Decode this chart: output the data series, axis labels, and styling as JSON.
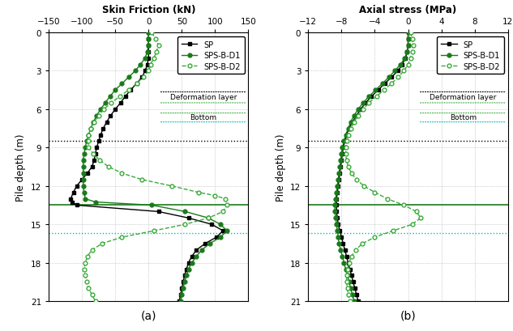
{
  "title_a": "Skin Friction (kN)",
  "title_b": "Axial stress (MPa)",
  "ylabel": "Pile depth (m)",
  "label_a": "(a)",
  "label_b": "(b)",
  "xlim_a": [
    -150,
    150
  ],
  "xlim_b": [
    -12,
    12
  ],
  "xticks_a": [
    -150,
    -100,
    -50,
    0,
    50,
    100,
    150
  ],
  "xticks_b": [
    -12,
    -8,
    -4,
    0,
    4,
    8,
    12
  ],
  "ylim": [
    21,
    0
  ],
  "yticks": [
    0,
    3,
    6,
    9,
    12,
    15,
    18,
    21
  ],
  "hline_black_dotted": 8.5,
  "hline_green_solid": 13.5,
  "hline_cyan_dotted": 15.7,
  "deformation_layer_y": 5.0,
  "bottom_y": 6.6,
  "deformation_line1_y": 4.5,
  "deformation_line2_y": 5.4,
  "bottom_line_y": 7.0,
  "SP_color": "#000000",
  "D1_color": "#1a7a1a",
  "D2_color": "#3aaa3a",
  "cyan_color": "#00bbbb",
  "SP_a_depth": [
    0.0,
    0.5,
    1.0,
    1.5,
    2.0,
    2.5,
    3.0,
    3.5,
    4.0,
    4.5,
    5.0,
    5.5,
    6.0,
    6.5,
    7.0,
    7.5,
    8.0,
    8.5,
    9.0,
    9.5,
    10.0,
    10.5,
    11.0,
    11.5,
    12.0,
    12.5,
    13.0,
    13.25,
    13.5,
    14.0,
    14.5,
    15.0,
    15.5,
    16.0,
    16.5,
    17.0,
    17.5,
    18.0,
    18.5,
    19.0,
    19.5,
    20.0,
    20.5,
    21.0
  ],
  "SP_a_vals": [
    0,
    0,
    0,
    0,
    0,
    -2,
    -5,
    -10,
    -18,
    -27,
    -35,
    -42,
    -50,
    -57,
    -63,
    -68,
    -72,
    -75,
    -78,
    -80,
    -82,
    -85,
    -92,
    -100,
    -108,
    -113,
    -117,
    -115,
    -108,
    15,
    60,
    95,
    112,
    102,
    85,
    72,
    65,
    60,
    57,
    54,
    52,
    50,
    48,
    46
  ],
  "D1_a_depth": [
    0.0,
    0.5,
    1.0,
    1.5,
    2.0,
    2.5,
    3.0,
    3.5,
    4.0,
    4.5,
    5.0,
    5.5,
    6.0,
    6.5,
    7.0,
    7.5,
    8.0,
    8.5,
    9.0,
    9.5,
    10.0,
    10.5,
    11.0,
    11.5,
    12.0,
    12.5,
    13.0,
    13.25,
    13.5,
    14.0,
    14.5,
    15.0,
    15.5,
    16.0,
    16.5,
    17.0,
    17.5,
    18.0,
    18.5,
    19.0,
    19.5,
    20.0,
    20.5,
    21.0
  ],
  "D1_a_vals": [
    0,
    0,
    0,
    -2,
    -5,
    -12,
    -20,
    -30,
    -40,
    -50,
    -58,
    -65,
    -72,
    -78,
    -83,
    -87,
    -90,
    -93,
    -95,
    -97,
    -98,
    -98,
    -98,
    -98,
    -98,
    -97,
    -95,
    -80,
    5,
    55,
    90,
    108,
    118,
    108,
    92,
    80,
    72,
    65,
    60,
    57,
    54,
    52,
    50,
    48
  ],
  "D2_a_depth": [
    0.0,
    0.5,
    1.0,
    1.5,
    2.0,
    2.5,
    3.0,
    3.5,
    4.0,
    4.5,
    5.0,
    5.5,
    6.0,
    6.5,
    7.0,
    7.5,
    8.0,
    8.5,
    9.0,
    9.5,
    10.0,
    10.5,
    11.0,
    11.5,
    12.0,
    12.5,
    12.75,
    13.0,
    13.5,
    14.0,
    14.5,
    15.0,
    15.5,
    16.0,
    16.5,
    17.0,
    17.5,
    18.0,
    18.5,
    19.0,
    19.5,
    20.0,
    20.5,
    21.0
  ],
  "D2_a_vals": [
    5,
    10,
    15,
    12,
    8,
    3,
    0,
    -8,
    -18,
    -30,
    -43,
    -56,
    -67,
    -75,
    -82,
    -87,
    -90,
    -91,
    -90,
    -83,
    -73,
    -60,
    -40,
    -10,
    35,
    75,
    100,
    115,
    118,
    112,
    90,
    55,
    8,
    -40,
    -70,
    -85,
    -92,
    -95,
    -97,
    -95,
    -93,
    -90,
    -85,
    -80
  ],
  "SP_b_depth": [
    0.0,
    0.5,
    1.0,
    1.5,
    2.0,
    2.5,
    3.0,
    3.5,
    4.0,
    4.5,
    5.0,
    5.5,
    6.0,
    6.5,
    7.0,
    7.5,
    8.0,
    8.5,
    9.0,
    9.5,
    10.0,
    10.5,
    11.0,
    11.5,
    12.0,
    12.5,
    13.0,
    13.5,
    14.0,
    14.5,
    15.0,
    15.5,
    16.0,
    16.5,
    17.0,
    17.5,
    18.0,
    18.5,
    19.0,
    19.5,
    20.0,
    20.5,
    21.0
  ],
  "SP_b_vals": [
    0,
    0,
    0,
    -0.1,
    -0.3,
    -0.7,
    -1.2,
    -2.0,
    -2.8,
    -3.6,
    -4.4,
    -5.1,
    -5.7,
    -6.2,
    -6.7,
    -7.1,
    -7.4,
    -7.6,
    -7.8,
    -7.9,
    -8.0,
    -8.1,
    -8.2,
    -8.3,
    -8.4,
    -8.5,
    -8.6,
    -8.6,
    -8.6,
    -8.5,
    -8.4,
    -8.2,
    -8.0,
    -7.8,
    -7.6,
    -7.4,
    -7.2,
    -7.0,
    -6.8,
    -6.6,
    -6.4,
    -6.2,
    -6.0
  ],
  "D1_b_depth": [
    0.0,
    0.5,
    1.0,
    1.5,
    2.0,
    2.5,
    3.0,
    3.5,
    4.0,
    4.5,
    5.0,
    5.5,
    6.0,
    6.5,
    7.0,
    7.5,
    8.0,
    8.5,
    9.0,
    9.5,
    10.0,
    10.5,
    11.0,
    11.5,
    12.0,
    12.5,
    13.0,
    13.5,
    14.0,
    14.5,
    15.0,
    15.5,
    16.0,
    16.5,
    17.0,
    17.5,
    18.0,
    18.5,
    19.0,
    19.5,
    20.0,
    20.5,
    21.0
  ],
  "D1_b_vals": [
    0,
    0,
    0,
    -0.1,
    -0.4,
    -0.9,
    -1.6,
    -2.3,
    -3.1,
    -3.9,
    -4.7,
    -5.4,
    -6.0,
    -6.5,
    -6.9,
    -7.2,
    -7.5,
    -7.7,
    -7.9,
    -8.0,
    -8.1,
    -8.2,
    -8.3,
    -8.4,
    -8.5,
    -8.6,
    -8.7,
    -8.8,
    -8.8,
    -8.7,
    -8.6,
    -8.5,
    -8.4,
    -8.3,
    -8.1,
    -7.9,
    -7.7,
    -7.5,
    -7.3,
    -7.1,
    -6.9,
    -6.7,
    -6.5
  ],
  "D2_b_depth": [
    0.0,
    0.5,
    1.0,
    1.5,
    2.0,
    2.5,
    3.0,
    3.5,
    4.0,
    4.5,
    5.0,
    5.5,
    6.0,
    6.5,
    7.0,
    7.5,
    8.0,
    8.5,
    9.0,
    9.5,
    10.0,
    10.5,
    11.0,
    11.5,
    12.0,
    12.5,
    13.0,
    13.5,
    14.0,
    14.5,
    15.0,
    15.5,
    16.0,
    16.5,
    17.0,
    17.5,
    18.0,
    18.5,
    19.0,
    19.5,
    20.0,
    20.5,
    21.0
  ],
  "D2_b_vals": [
    0.3,
    0.5,
    0.6,
    0.5,
    0.3,
    0.0,
    -0.5,
    -1.2,
    -2.0,
    -2.9,
    -3.8,
    -4.7,
    -5.4,
    -6.0,
    -6.5,
    -6.9,
    -7.2,
    -7.4,
    -7.5,
    -7.5,
    -7.4,
    -7.2,
    -6.8,
    -6.2,
    -5.3,
    -4.0,
    -2.5,
    -0.5,
    1.0,
    1.5,
    0.5,
    -1.8,
    -4.0,
    -5.5,
    -6.3,
    -6.8,
    -7.1,
    -7.3,
    -7.4,
    -7.4,
    -7.3,
    -7.2,
    -7.0
  ]
}
